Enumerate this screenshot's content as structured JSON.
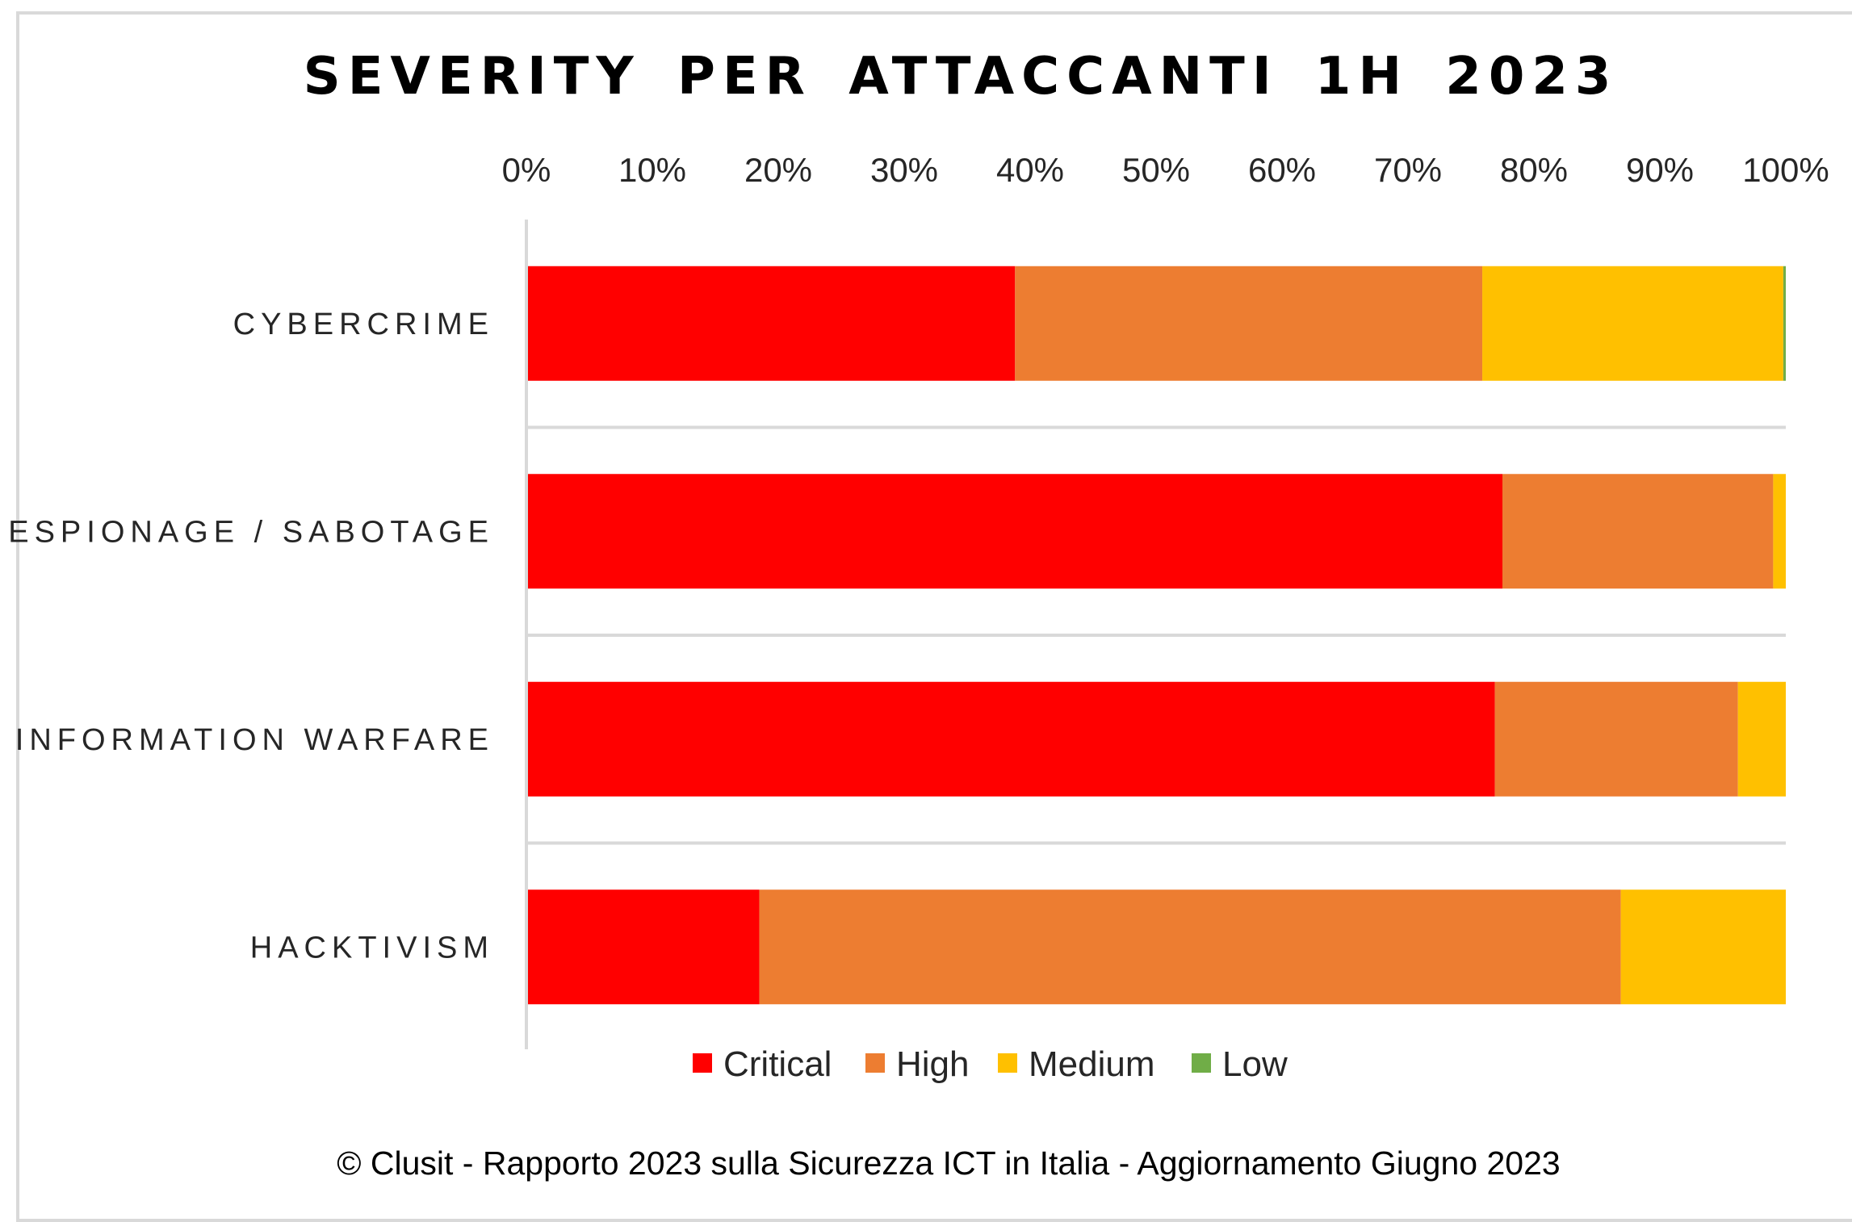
{
  "footer": "© Clusit - Rapporto 2023 sulla Sicurezza ICT in Italia - Aggiornamento Giugno 2023",
  "chart_data": {
    "type": "bar",
    "orientation": "horizontal",
    "stacked": "percent",
    "title": "SEVERITY PER ATTACCANTI 1H 2023",
    "xlabel": "",
    "ylabel": "",
    "xlim": [
      0,
      100
    ],
    "x_ticks": [
      "0%",
      "10%",
      "20%",
      "30%",
      "40%",
      "50%",
      "60%",
      "70%",
      "80%",
      "90%",
      "100%"
    ],
    "x_axis_position": "top",
    "grid": false,
    "categories": [
      "CYBERCRIME",
      "ESPIONAGE / SABOTAGE",
      "INFORMATION WARFARE",
      "HACKTIVISM"
    ],
    "series": [
      {
        "name": "Critical",
        "color": "#FF0000",
        "values": [
          38.8,
          77.5,
          76.9,
          18.5
        ]
      },
      {
        "name": "High",
        "color": "#ED7D31",
        "values": [
          37.1,
          21.5,
          19.3,
          68.4
        ]
      },
      {
        "name": "Medium",
        "color": "#FFC000",
        "values": [
          23.9,
          1.0,
          3.8,
          13.1
        ]
      },
      {
        "name": "Low",
        "color": "#70AD47",
        "values": [
          0.2,
          0.0,
          0.0,
          0.0
        ]
      }
    ],
    "legend_position": "bottom"
  }
}
